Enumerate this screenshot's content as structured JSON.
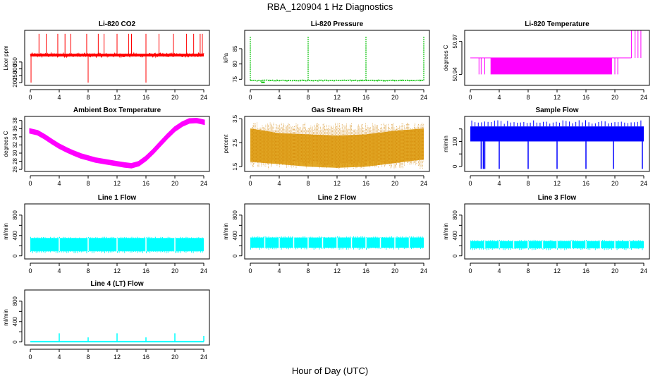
{
  "figure": {
    "title": "RBA_120904  1 Hz Diagnostics",
    "xlabel": "Hour of Day (UTC)"
  },
  "chart_data": [
    {
      "id": "co2",
      "type": "line",
      "title": "Li-820 CO2",
      "ylabel": "Licor ppm",
      "color": "#ff0000",
      "xlim": [
        0,
        24
      ],
      "xticks": [
        0,
        4,
        8,
        12,
        16,
        20,
        24
      ],
      "ylim": [
        180,
        580
      ],
      "yticks": [
        200,
        250,
        300,
        350
      ],
      "ytick_labels": [
        "200",
        "250",
        "300",
        "350"
      ],
      "series": [
        {
          "name": "CO2",
          "baseline": 400,
          "noise": 10,
          "spikes_up": [
            1.2,
            2.2,
            3.8,
            4.8,
            5.6,
            7.8,
            9.4,
            10.2,
            12.0,
            13.6,
            14.0,
            16.0,
            17.8,
            19.8,
            21.6,
            22.6,
            23.5,
            23.8
          ],
          "spike_top": 555,
          "spikes_down": [
            0.1,
            8.0,
            16.0
          ],
          "down_to": 200
        }
      ]
    },
    {
      "id": "pressure",
      "type": "line",
      "title": "Li-820 Pressure",
      "ylabel": "kPa",
      "color": "#00c000",
      "xlim": [
        0,
        24
      ],
      "xticks": [
        0,
        4,
        8,
        12,
        16,
        20,
        24
      ],
      "ylim": [
        73,
        91
      ],
      "yticks": [
        75,
        80,
        85
      ],
      "ytick_labels": [
        "75",
        "80",
        "85"
      ],
      "series": [
        {
          "name": "Pressure",
          "baseline": 74.6,
          "noise": 0.3,
          "spikes_up": [
            0.0,
            8.0,
            16.0,
            24.0
          ],
          "spike_top": 89,
          "dip": [
            1.5,
            2.0,
            74.0
          ]
        }
      ]
    },
    {
      "id": "temperature",
      "type": "line",
      "title": "Li-820 Temperature",
      "ylabel": "degrees C",
      "color": "#ff00ff",
      "xlim": [
        0,
        24
      ],
      "xticks": [
        0,
        4,
        8,
        12,
        16,
        20,
        24
      ],
      "ylim": [
        50.93,
        50.98
      ],
      "yticks": [
        50.94,
        50.97
      ],
      "ytick_labels": [
        "50.94",
        "50.97"
      ],
      "series": [
        {
          "name": "Temperature",
          "levels": [
            50.94,
            50.955,
            50.97
          ],
          "toggle_band": [
            2.8,
            19.6
          ],
          "high_from": 22.3
        }
      ]
    },
    {
      "id": "ambient",
      "type": "line",
      "title": "Ambient Box Temperature",
      "ylabel": "degrees C",
      "color": "#ff00ff",
      "xlim": [
        0,
        24
      ],
      "xticks": [
        0,
        4,
        8,
        12,
        16,
        20,
        24
      ],
      "ylim": [
        25.5,
        39
      ],
      "yticks": [
        26,
        28,
        30,
        32,
        34,
        36,
        38
      ],
      "ytick_labels": [
        "26",
        "28",
        "30",
        "32",
        "34",
        "36",
        "38"
      ],
      "series": [
        {
          "name": "Ambient",
          "x": [
            0,
            1,
            2,
            3,
            4,
            5,
            6,
            7,
            8,
            9,
            10,
            11,
            12,
            13,
            14,
            15,
            16,
            17,
            18,
            19,
            20,
            21,
            22,
            23,
            24
          ],
          "y": [
            35.4,
            35.0,
            34.0,
            32.8,
            31.7,
            30.8,
            30.0,
            29.3,
            28.8,
            28.3,
            28.0,
            27.7,
            27.4,
            27.1,
            26.9,
            27.4,
            28.7,
            30.4,
            32.3,
            34.2,
            35.9,
            37.1,
            37.9,
            38.0,
            37.6
          ],
          "band": 0.4
        }
      ]
    },
    {
      "id": "rh",
      "type": "line",
      "title": "Gas Stream RH",
      "ylabel": "percent",
      "color": "#dd9900",
      "xlim": [
        0,
        24
      ],
      "xticks": [
        0,
        4,
        8,
        12,
        16,
        20,
        24
      ],
      "ylim": [
        1.3,
        3.6
      ],
      "yticks": [
        1.5,
        2.5,
        3.5
      ],
      "ytick_labels": [
        "1.5",
        "2.5",
        "3.5"
      ],
      "series": [
        {
          "name": "RH",
          "x": [
            0,
            4,
            8,
            12,
            16,
            20,
            24
          ],
          "lower": [
            1.7,
            1.6,
            1.5,
            1.45,
            1.5,
            1.65,
            1.8
          ],
          "upper": [
            3.1,
            2.9,
            2.85,
            2.8,
            2.85,
            3.0,
            3.1
          ]
        }
      ]
    },
    {
      "id": "sample_flow",
      "type": "line",
      "title": "Sample Flow",
      "ylabel": "ml/min",
      "color": "#0000ff",
      "xlim": [
        0,
        24
      ],
      "xticks": [
        0,
        4,
        8,
        12,
        16,
        20,
        24
      ],
      "ylim": [
        -20,
        200
      ],
      "yticks": [
        0,
        50,
        100,
        150
      ],
      "ytick_labels": [
        "0",
        "",
        "100",
        ""
      ],
      "series": [
        {
          "name": "Sample Flow",
          "lower": 100,
          "upper": 160,
          "peaks": 185,
          "dips": [
            1.5,
            1.8,
            2.0,
            4.0,
            8.0,
            12.0,
            16.0,
            19.8,
            23.8
          ],
          "dip_to": -10
        }
      ]
    },
    {
      "id": "line1",
      "type": "line",
      "title": "Line 1 Flow",
      "ylabel": "ml/min",
      "color": "#00ffff",
      "xlim": [
        0,
        24
      ],
      "xticks": [
        0,
        4,
        8,
        12,
        16,
        20,
        24
      ],
      "ylim": [
        -60,
        1020
      ],
      "yticks": [
        0,
        200,
        400,
        600,
        800
      ],
      "ytick_labels": [
        "0",
        "",
        "400",
        "",
        "800"
      ],
      "series": [
        {
          "name": "Line 1",
          "lower": 90,
          "upper": 350,
          "gaps": [
            4,
            8,
            12,
            16,
            20
          ]
        }
      ]
    },
    {
      "id": "line2",
      "type": "line",
      "title": "Line 2 Flow",
      "ylabel": "ml/min",
      "color": "#00ffff",
      "xlim": [
        0,
        24
      ],
      "xticks": [
        0,
        4,
        8,
        12,
        16,
        20,
        24
      ],
      "ylim": [
        -60,
        1020
      ],
      "yticks": [
        0,
        200,
        400,
        600,
        800
      ],
      "ytick_labels": [
        "0",
        "",
        "400",
        "",
        "800"
      ],
      "series": [
        {
          "name": "Line 2",
          "lower": 160,
          "upper": 360,
          "gaps": [
            2.0,
            4,
            6.0,
            8,
            10.0,
            12,
            14.0,
            16,
            18.0,
            20,
            22.0
          ]
        }
      ]
    },
    {
      "id": "line3",
      "type": "line",
      "title": "Line 3 Flow",
      "ylabel": "ml/min",
      "color": "#00ffff",
      "xlim": [
        0,
        24
      ],
      "xticks": [
        0,
        4,
        8,
        12,
        16,
        20,
        24
      ],
      "ylim": [
        -60,
        1020
      ],
      "yticks": [
        0,
        200,
        400,
        600,
        800
      ],
      "ytick_labels": [
        "0",
        "",
        "400",
        "",
        "800"
      ],
      "series": [
        {
          "name": "Line 3",
          "lower": 150,
          "upper": 290,
          "gaps": [
            2.0,
            4,
            6.0,
            8,
            10.0,
            12,
            14.0,
            16,
            18.0,
            20,
            22.0
          ]
        }
      ]
    },
    {
      "id": "line4",
      "type": "line",
      "title": "Line 4 (LT) Flow",
      "ylabel": "ml/min",
      "color": "#00ffff",
      "xlim": [
        0,
        24
      ],
      "xticks": [
        0,
        4,
        8,
        12,
        16,
        20,
        24
      ],
      "ylim": [
        -60,
        1020
      ],
      "yticks": [
        0,
        200,
        400,
        600,
        800
      ],
      "ytick_labels": [
        "0",
        "",
        "400",
        "",
        "800"
      ],
      "series": [
        {
          "name": "Line 4",
          "baseline": 5,
          "spikes": [
            [
              4,
              170
            ],
            [
              8,
              90
            ],
            [
              12,
              170
            ],
            [
              16,
              90
            ],
            [
              20,
              170
            ],
            [
              24,
              120
            ]
          ]
        }
      ]
    }
  ]
}
